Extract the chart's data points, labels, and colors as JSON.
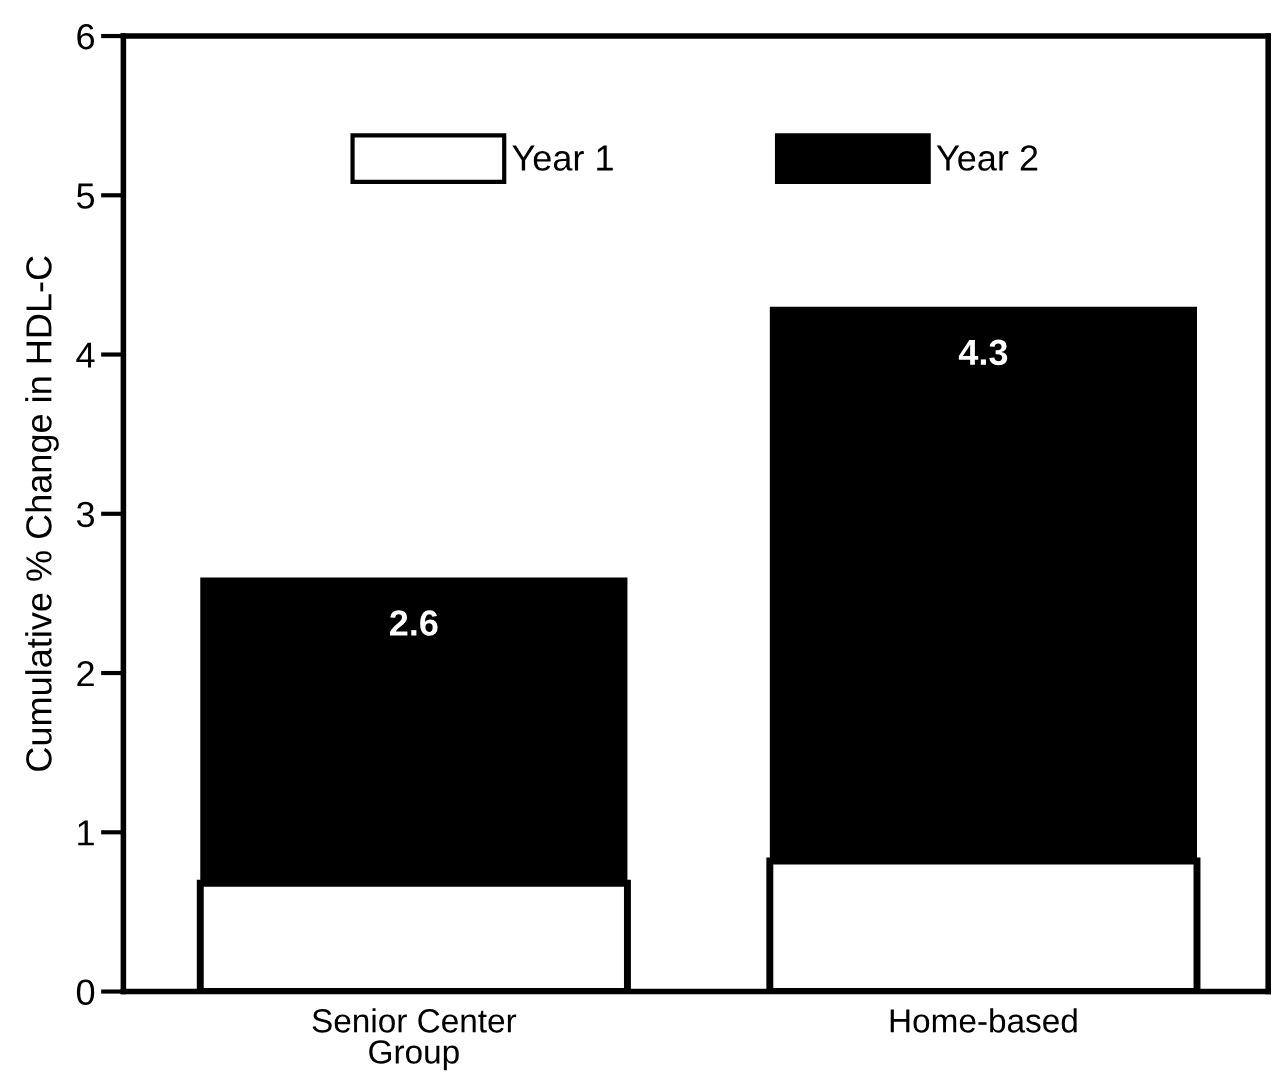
{
  "chart_data": {
    "type": "bar",
    "stacked": true,
    "ylabel": "Cumulative % Change in HDL-C",
    "categories": [
      "Senior Center\nGroup",
      "Home-based"
    ],
    "series": [
      {
        "name": "Year 1",
        "color": "#ffffff",
        "values": [
          0.68,
          0.82
        ]
      },
      {
        "name": "Year 2",
        "color": "#000000",
        "values": [
          1.92,
          3.48
        ]
      }
    ],
    "totals": [
      "2.6",
      "4.3"
    ],
    "ylim": [
      0,
      6
    ],
    "yticks": [
      0,
      1,
      2,
      3,
      4,
      5,
      6
    ],
    "grid": false,
    "legend": "top"
  }
}
